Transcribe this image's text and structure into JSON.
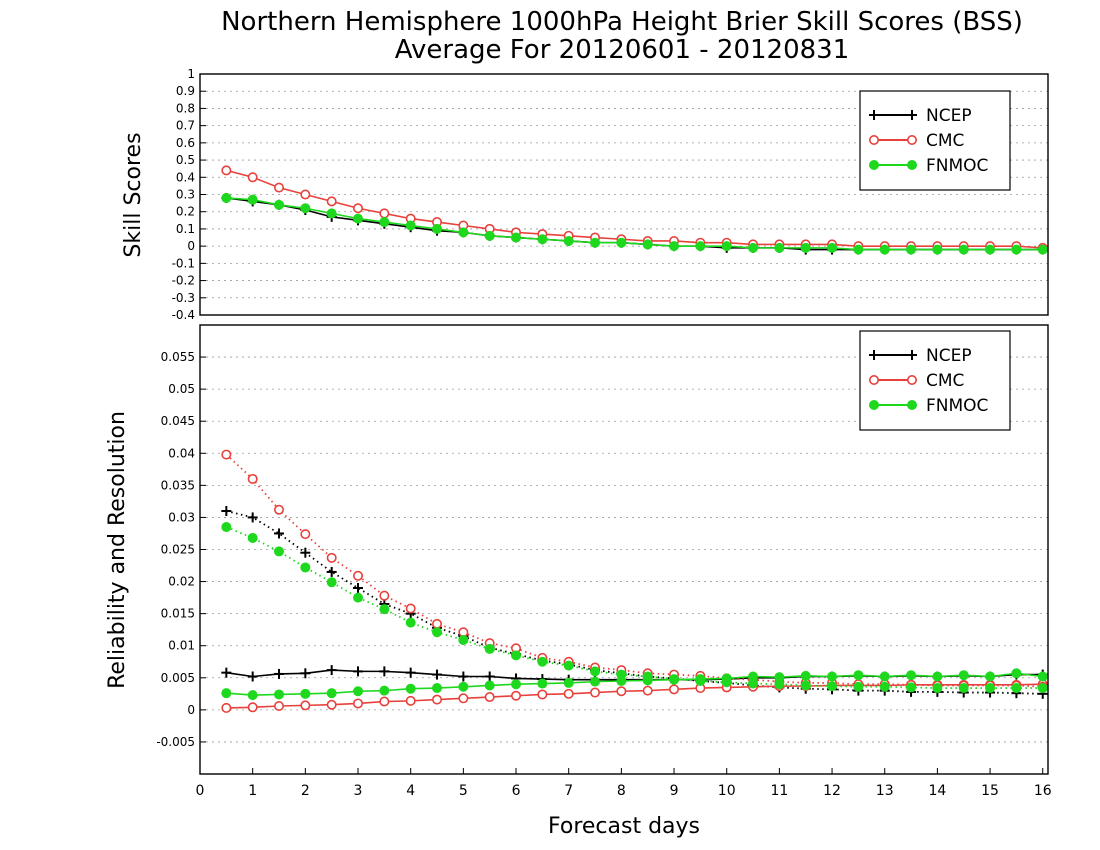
{
  "title": "Northern Hemisphere 1000hPa Height Brier Skill Scores (BSS)",
  "subtitle": "Average For 20120601 - 20120831",
  "xlabel": "Forecast days",
  "colors": {
    "NCEP": "#000000",
    "CMC": "#e8413c",
    "FNMOC": "#1ed81e"
  },
  "chart_data": [
    {
      "type": "line",
      "ylabel": "Skill Scores",
      "xlim": [
        0,
        16.1
      ],
      "ylim": [
        -0.4,
        1
      ],
      "grid": true,
      "legend_position": "top-right",
      "y_ticks": [
        "-0.4",
        "-0.3",
        "-0.2",
        "-0.1",
        "0",
        "0.1",
        "0.2",
        "0.3",
        "0.4",
        "0.5",
        "0.6",
        "0.7",
        "0.8",
        "0.9",
        "1"
      ],
      "x": [
        0.5,
        1,
        1.5,
        2,
        2.5,
        3,
        3.5,
        4,
        4.5,
        5,
        5.5,
        6,
        6.5,
        7,
        7.5,
        8,
        8.5,
        9,
        9.5,
        10,
        10.5,
        11,
        11.5,
        12,
        12.5,
        13,
        13.5,
        14,
        14.5,
        15,
        15.5,
        16
      ],
      "series": [
        {
          "name": "NCEP",
          "marker": "plus",
          "style": "solid",
          "values": [
            0.28,
            0.26,
            0.24,
            0.21,
            0.17,
            0.15,
            0.13,
            0.11,
            0.09,
            0.08,
            0.06,
            0.05,
            0.04,
            0.03,
            0.02,
            0.02,
            0.01,
            0.0,
            0.0,
            -0.01,
            -0.01,
            -0.01,
            -0.02,
            -0.02,
            -0.02,
            -0.02,
            -0.02,
            -0.02,
            -0.02,
            -0.02,
            -0.02,
            -0.02
          ]
        },
        {
          "name": "CMC",
          "marker": "open-circle",
          "style": "solid",
          "values": [
            0.44,
            0.4,
            0.34,
            0.3,
            0.26,
            0.22,
            0.19,
            0.16,
            0.14,
            0.12,
            0.1,
            0.08,
            0.07,
            0.06,
            0.05,
            0.04,
            0.03,
            0.03,
            0.02,
            0.02,
            0.01,
            0.01,
            0.01,
            0.01,
            0.0,
            0.0,
            0.0,
            0.0,
            0.0,
            0.0,
            0.0,
            -0.01
          ]
        },
        {
          "name": "FNMOC",
          "marker": "filled-circle",
          "style": "solid",
          "values": [
            0.28,
            0.27,
            0.24,
            0.22,
            0.19,
            0.16,
            0.14,
            0.12,
            0.1,
            0.08,
            0.06,
            0.05,
            0.04,
            0.03,
            0.02,
            0.02,
            0.01,
            0.0,
            0.0,
            0.0,
            -0.01,
            -0.01,
            -0.01,
            -0.01,
            -0.02,
            -0.02,
            -0.02,
            -0.02,
            -0.02,
            -0.02,
            -0.02,
            -0.02
          ]
        }
      ]
    },
    {
      "type": "line",
      "ylabel": "Reliability and Resolution",
      "xlim": [
        0,
        16.1
      ],
      "ylim": [
        -0.01,
        0.06
      ],
      "grid": true,
      "legend_position": "top-right",
      "y_ticks": [
        "-0.005",
        "0",
        "0.005",
        "0.01",
        "0.015",
        "0.02",
        "0.025",
        "0.03",
        "0.035",
        "0.04",
        "0.045",
        "0.05",
        "0.055"
      ],
      "x_ticks": [
        "0",
        "1",
        "2",
        "3",
        "4",
        "5",
        "6",
        "7",
        "8",
        "9",
        "10",
        "11",
        "12",
        "13",
        "14",
        "15",
        "16"
      ],
      "x": [
        0.5,
        1,
        1.5,
        2,
        2.5,
        3,
        3.5,
        4,
        4.5,
        5,
        5.5,
        6,
        6.5,
        7,
        7.5,
        8,
        8.5,
        9,
        9.5,
        10,
        10.5,
        11,
        11.5,
        12,
        12.5,
        13,
        13.5,
        14,
        14.5,
        15,
        15.5,
        16
      ],
      "series": [
        {
          "name": "NCEP",
          "marker": "plus",
          "style": "solid",
          "values": [
            0.0058,
            0.0052,
            0.0056,
            0.0057,
            0.0062,
            0.006,
            0.006,
            0.0058,
            0.0055,
            0.0052,
            0.0052,
            0.0049,
            0.0048,
            0.0047,
            0.0047,
            0.0047,
            0.0047,
            0.0047,
            0.0047,
            0.0048,
            0.005,
            0.005,
            0.0052,
            0.0052,
            0.0053,
            0.0052,
            0.0053,
            0.0052,
            0.0053,
            0.0052,
            0.0055,
            0.0055
          ]
        },
        {
          "name": "NCEP",
          "marker": "plus",
          "style": "dotted",
          "values": [
            0.031,
            0.03,
            0.0275,
            0.0245,
            0.0215,
            0.019,
            0.0165,
            0.015,
            0.0128,
            0.0115,
            0.0097,
            0.0087,
            0.0077,
            0.0071,
            0.0062,
            0.0057,
            0.0052,
            0.0049,
            0.0045,
            0.0042,
            0.0038,
            0.0035,
            0.0033,
            0.0032,
            0.003,
            0.003,
            0.0028,
            0.0028,
            0.0027,
            0.0027,
            0.0026,
            0.0025
          ]
        },
        {
          "name": "CMC",
          "marker": "open-circle",
          "style": "solid",
          "values": [
            0.0003,
            0.0004,
            0.0006,
            0.0007,
            0.0008,
            0.001,
            0.0013,
            0.0014,
            0.0016,
            0.0018,
            0.002,
            0.0022,
            0.0024,
            0.0025,
            0.0027,
            0.0029,
            0.003,
            0.0032,
            0.0034,
            0.0035,
            0.0036,
            0.0037,
            0.0037,
            0.0038,
            0.0038,
            0.0038,
            0.0039,
            0.0039,
            0.0039,
            0.0039,
            0.0039,
            0.004
          ]
        },
        {
          "name": "CMC",
          "marker": "open-circle",
          "style": "dotted",
          "values": [
            0.0398,
            0.036,
            0.0312,
            0.0274,
            0.0237,
            0.0209,
            0.0178,
            0.0158,
            0.0134,
            0.0121,
            0.0104,
            0.0096,
            0.0081,
            0.0075,
            0.0066,
            0.0062,
            0.0057,
            0.0055,
            0.0053,
            0.0049,
            0.0047,
            0.0044,
            0.0042,
            0.0042,
            0.004,
            0.004,
            0.0039,
            0.0038,
            0.0038,
            0.0038,
            0.0038,
            0.0036
          ]
        },
        {
          "name": "FNMOC",
          "marker": "filled-circle",
          "style": "solid",
          "values": [
            0.0026,
            0.0023,
            0.0024,
            0.0025,
            0.0026,
            0.0029,
            0.003,
            0.0033,
            0.0034,
            0.0036,
            0.0038,
            0.004,
            0.0041,
            0.0042,
            0.0044,
            0.0045,
            0.0046,
            0.0047,
            0.0048,
            0.0049,
            0.0052,
            0.0051,
            0.0053,
            0.0052,
            0.0054,
            0.0052,
            0.0054,
            0.0052,
            0.0054,
            0.0052,
            0.0057,
            0.0052
          ]
        },
        {
          "name": "FNMOC",
          "marker": "filled-circle",
          "style": "dotted",
          "values": [
            0.0285,
            0.0268,
            0.0247,
            0.0222,
            0.0199,
            0.0175,
            0.0157,
            0.0136,
            0.0121,
            0.0109,
            0.0095,
            0.0085,
            0.0075,
            0.0069,
            0.006,
            0.0055,
            0.0052,
            0.0048,
            0.0045,
            0.0043,
            0.0041,
            0.004,
            0.0038,
            0.0037,
            0.0036,
            0.0036,
            0.0035,
            0.0034,
            0.0034,
            0.0034,
            0.0034,
            0.0034
          ]
        }
      ]
    }
  ]
}
